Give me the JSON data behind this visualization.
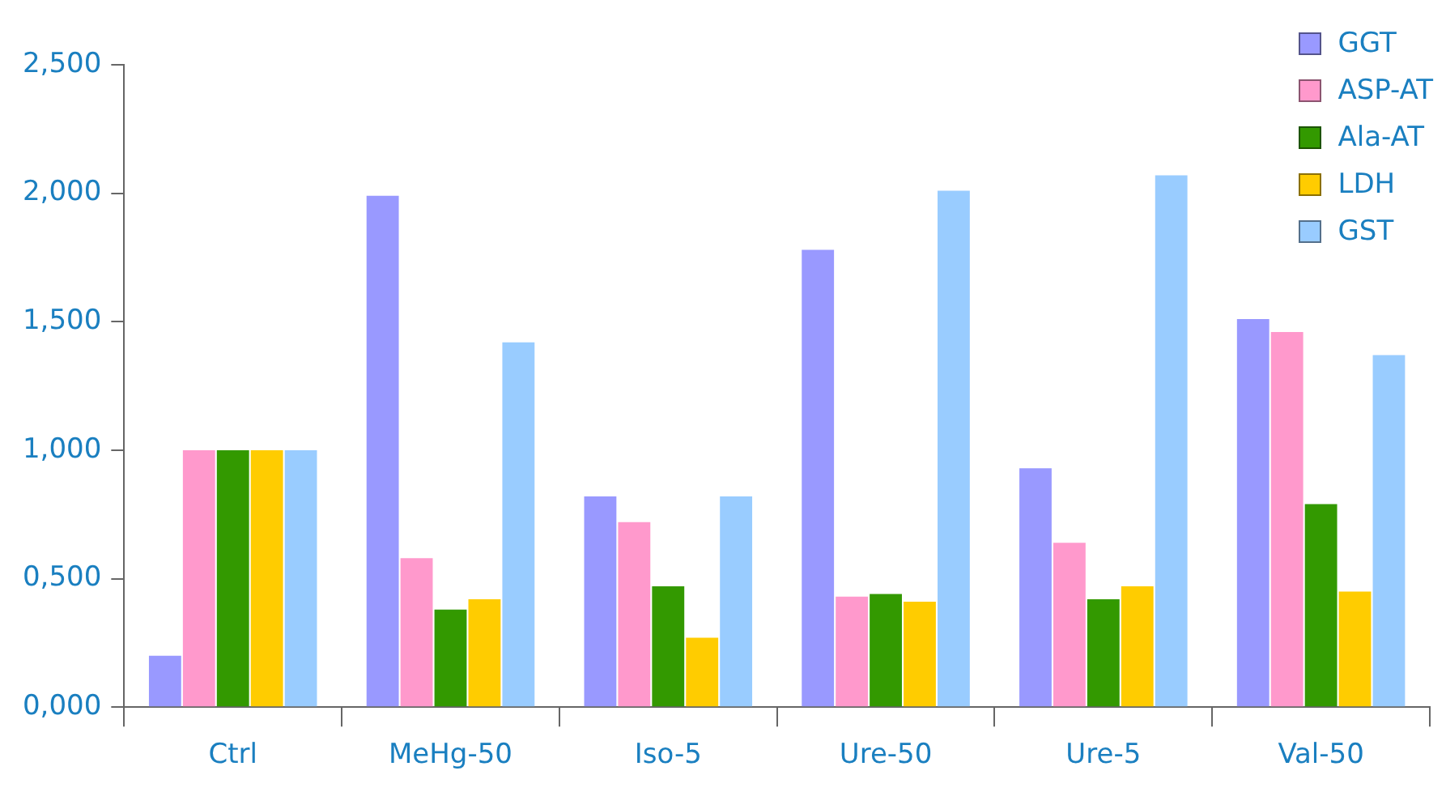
{
  "chart_data": {
    "type": "bar",
    "categories": [
      "Ctrl",
      "MeHg-50",
      "Iso-5",
      "Ure-50",
      "Ure-5",
      "Val-50"
    ],
    "series": [
      {
        "name": "GGT",
        "color": "#9999ff",
        "values": [
          0.2,
          1.99,
          0.82,
          1.78,
          0.93,
          1.51
        ]
      },
      {
        "name": "ASP-AT",
        "color": "#ff99cc",
        "values": [
          1.0,
          0.58,
          0.72,
          0.43,
          0.64,
          1.46
        ]
      },
      {
        "name": "Ala-AT",
        "color": "#339900",
        "values": [
          1.0,
          0.38,
          0.47,
          0.44,
          0.42,
          0.79
        ]
      },
      {
        "name": "LDH",
        "color": "#ffcc00",
        "values": [
          1.0,
          0.42,
          0.27,
          0.41,
          0.47,
          0.45
        ]
      },
      {
        "name": "GST",
        "color": "#99ccff",
        "values": [
          1.0,
          1.42,
          0.82,
          2.01,
          2.07,
          1.37
        ]
      }
    ],
    "ylim": [
      0,
      2.5
    ],
    "yticks": [
      {
        "value": 0,
        "label": "0,000"
      },
      {
        "value": 0.5,
        "label": "0,500"
      },
      {
        "value": 1,
        "label": "1,000"
      },
      {
        "value": 1.5,
        "label": "1,500"
      },
      {
        "value": 2,
        "label": "2,000"
      },
      {
        "value": 2.5,
        "label": "2,500"
      }
    ],
    "grid": false,
    "legend": "top right"
  }
}
